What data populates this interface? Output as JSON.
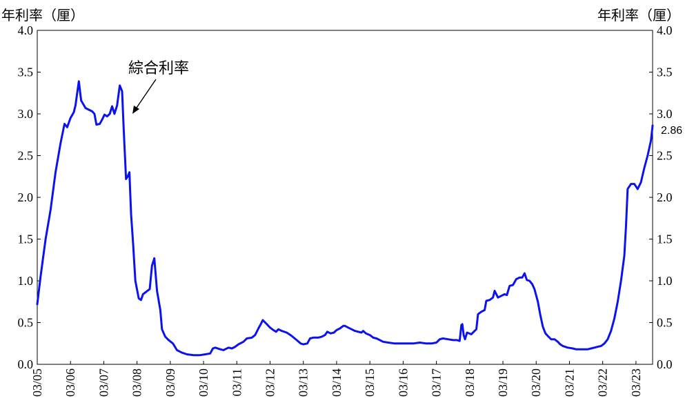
{
  "chart_data": {
    "type": "line",
    "left_axis_title": "年利率（厘）",
    "right_axis_title": "年利率（厘）",
    "annotation": "綜合利率",
    "end_value_label": "2.86",
    "ylim": [
      0,
      4.0
    ],
    "y_ticks": [
      "0.0",
      "0.5",
      "1.0",
      "1.5",
      "2.0",
      "2.5",
      "3.0",
      "3.5",
      "4.0"
    ],
    "categories": [
      "03/05",
      "03/06",
      "03/07",
      "03/08",
      "03/09",
      "03/10",
      "03/11",
      "03/12",
      "03/13",
      "03/14",
      "03/15",
      "03/16",
      "03/17",
      "03/18",
      "03/19",
      "03/20",
      "03/21",
      "03/22",
      "03/23"
    ],
    "x_range": [
      2005.0,
      2023.5
    ],
    "grid": false,
    "series": [
      {
        "color": "#0a12f0",
        "points": [
          [
            2005.0,
            0.72
          ],
          [
            2005.1,
            1.05
          ],
          [
            2005.25,
            1.5
          ],
          [
            2005.4,
            1.85
          ],
          [
            2005.55,
            2.3
          ],
          [
            2005.7,
            2.65
          ],
          [
            2005.82,
            2.88
          ],
          [
            2005.9,
            2.84
          ],
          [
            2006.0,
            2.95
          ],
          [
            2006.1,
            3.02
          ],
          [
            2006.15,
            3.1
          ],
          [
            2006.2,
            3.25
          ],
          [
            2006.25,
            3.39
          ],
          [
            2006.32,
            3.16
          ],
          [
            2006.45,
            3.07
          ],
          [
            2006.55,
            3.05
          ],
          [
            2006.65,
            3.03
          ],
          [
            2006.72,
            3.0
          ],
          [
            2006.78,
            2.87
          ],
          [
            2006.88,
            2.88
          ],
          [
            2006.95,
            2.93
          ],
          [
            2007.02,
            2.99
          ],
          [
            2007.1,
            2.97
          ],
          [
            2007.18,
            3.0
          ],
          [
            2007.25,
            3.09
          ],
          [
            2007.32,
            3.0
          ],
          [
            2007.4,
            3.1
          ],
          [
            2007.48,
            3.34
          ],
          [
            2007.55,
            3.27
          ],
          [
            2007.6,
            2.8
          ],
          [
            2007.67,
            2.22
          ],
          [
            2007.72,
            2.25
          ],
          [
            2007.77,
            2.3
          ],
          [
            2007.82,
            1.8
          ],
          [
            2007.88,
            1.45
          ],
          [
            2007.95,
            1.0
          ],
          [
            2008.05,
            0.79
          ],
          [
            2008.12,
            0.77
          ],
          [
            2008.18,
            0.84
          ],
          [
            2008.28,
            0.87
          ],
          [
            2008.38,
            0.9
          ],
          [
            2008.45,
            1.18
          ],
          [
            2008.52,
            1.27
          ],
          [
            2008.6,
            0.88
          ],
          [
            2008.7,
            0.65
          ],
          [
            2008.75,
            0.42
          ],
          [
            2008.85,
            0.33
          ],
          [
            2008.95,
            0.29
          ],
          [
            2009.08,
            0.25
          ],
          [
            2009.2,
            0.17
          ],
          [
            2009.35,
            0.14
          ],
          [
            2009.5,
            0.12
          ],
          [
            2009.7,
            0.11
          ],
          [
            2009.9,
            0.11
          ],
          [
            2010.05,
            0.12
          ],
          [
            2010.2,
            0.13
          ],
          [
            2010.28,
            0.19
          ],
          [
            2010.35,
            0.2
          ],
          [
            2010.5,
            0.18
          ],
          [
            2010.6,
            0.17
          ],
          [
            2010.75,
            0.2
          ],
          [
            2010.85,
            0.19
          ],
          [
            2010.95,
            0.21
          ],
          [
            2011.05,
            0.24
          ],
          [
            2011.2,
            0.27
          ],
          [
            2011.3,
            0.31
          ],
          [
            2011.45,
            0.32
          ],
          [
            2011.55,
            0.35
          ],
          [
            2011.65,
            0.43
          ],
          [
            2011.72,
            0.48
          ],
          [
            2011.78,
            0.53
          ],
          [
            2011.88,
            0.49
          ],
          [
            2012.0,
            0.44
          ],
          [
            2012.1,
            0.41
          ],
          [
            2012.18,
            0.39
          ],
          [
            2012.25,
            0.42
          ],
          [
            2012.35,
            0.4
          ],
          [
            2012.5,
            0.38
          ],
          [
            2012.65,
            0.34
          ],
          [
            2012.8,
            0.29
          ],
          [
            2012.92,
            0.25
          ],
          [
            2013.0,
            0.24
          ],
          [
            2013.12,
            0.25
          ],
          [
            2013.2,
            0.31
          ],
          [
            2013.3,
            0.32
          ],
          [
            2013.45,
            0.32
          ],
          [
            2013.55,
            0.33
          ],
          [
            2013.65,
            0.35
          ],
          [
            2013.72,
            0.39
          ],
          [
            2013.82,
            0.37
          ],
          [
            2013.92,
            0.38
          ],
          [
            2014.0,
            0.41
          ],
          [
            2014.1,
            0.43
          ],
          [
            2014.2,
            0.46
          ],
          [
            2014.25,
            0.46
          ],
          [
            2014.35,
            0.44
          ],
          [
            2014.45,
            0.42
          ],
          [
            2014.55,
            0.4
          ],
          [
            2014.65,
            0.39
          ],
          [
            2014.75,
            0.38
          ],
          [
            2014.8,
            0.4
          ],
          [
            2014.88,
            0.37
          ],
          [
            2015.0,
            0.35
          ],
          [
            2015.1,
            0.32
          ],
          [
            2015.2,
            0.31
          ],
          [
            2015.3,
            0.29
          ],
          [
            2015.4,
            0.27
          ],
          [
            2015.55,
            0.26
          ],
          [
            2015.75,
            0.25
          ],
          [
            2016.0,
            0.25
          ],
          [
            2016.3,
            0.25
          ],
          [
            2016.5,
            0.26
          ],
          [
            2016.7,
            0.25
          ],
          [
            2016.85,
            0.25
          ],
          [
            2017.0,
            0.26
          ],
          [
            2017.1,
            0.3
          ],
          [
            2017.2,
            0.31
          ],
          [
            2017.35,
            0.3
          ],
          [
            2017.5,
            0.29
          ],
          [
            2017.62,
            0.29
          ],
          [
            2017.7,
            0.28
          ],
          [
            2017.75,
            0.47
          ],
          [
            2017.78,
            0.48
          ],
          [
            2017.82,
            0.35
          ],
          [
            2017.86,
            0.3
          ],
          [
            2017.92,
            0.38
          ],
          [
            2018.05,
            0.36
          ],
          [
            2018.15,
            0.4
          ],
          [
            2018.2,
            0.42
          ],
          [
            2018.25,
            0.6
          ],
          [
            2018.35,
            0.63
          ],
          [
            2018.45,
            0.65
          ],
          [
            2018.5,
            0.76
          ],
          [
            2018.6,
            0.77
          ],
          [
            2018.7,
            0.8
          ],
          [
            2018.75,
            0.88
          ],
          [
            2018.85,
            0.8
          ],
          [
            2018.95,
            0.82
          ],
          [
            2019.05,
            0.84
          ],
          [
            2019.12,
            0.83
          ],
          [
            2019.2,
            0.94
          ],
          [
            2019.3,
            0.95
          ],
          [
            2019.4,
            1.02
          ],
          [
            2019.5,
            1.04
          ],
          [
            2019.58,
            1.04
          ],
          [
            2019.65,
            1.09
          ],
          [
            2019.72,
            1.01
          ],
          [
            2019.8,
            1.0
          ],
          [
            2019.88,
            0.96
          ],
          [
            2019.95,
            0.9
          ],
          [
            2020.05,
            0.75
          ],
          [
            2020.12,
            0.6
          ],
          [
            2020.2,
            0.45
          ],
          [
            2020.28,
            0.37
          ],
          [
            2020.35,
            0.34
          ],
          [
            2020.45,
            0.3
          ],
          [
            2020.55,
            0.3
          ],
          [
            2020.65,
            0.27
          ],
          [
            2020.72,
            0.24
          ],
          [
            2020.8,
            0.22
          ],
          [
            2020.95,
            0.2
          ],
          [
            2021.1,
            0.19
          ],
          [
            2021.2,
            0.18
          ],
          [
            2021.4,
            0.18
          ],
          [
            2021.55,
            0.18
          ],
          [
            2021.65,
            0.19
          ],
          [
            2021.75,
            0.2
          ],
          [
            2021.85,
            0.21
          ],
          [
            2021.95,
            0.22
          ],
          [
            2022.05,
            0.25
          ],
          [
            2022.15,
            0.3
          ],
          [
            2022.25,
            0.4
          ],
          [
            2022.35,
            0.55
          ],
          [
            2022.45,
            0.75
          ],
          [
            2022.55,
            1.0
          ],
          [
            2022.65,
            1.3
          ],
          [
            2022.7,
            1.65
          ],
          [
            2022.75,
            2.1
          ],
          [
            2022.85,
            2.16
          ],
          [
            2022.95,
            2.16
          ],
          [
            2023.05,
            2.1
          ],
          [
            2023.15,
            2.18
          ],
          [
            2023.25,
            2.35
          ],
          [
            2023.35,
            2.5
          ],
          [
            2023.45,
            2.68
          ],
          [
            2023.5,
            2.86
          ]
        ]
      }
    ]
  }
}
